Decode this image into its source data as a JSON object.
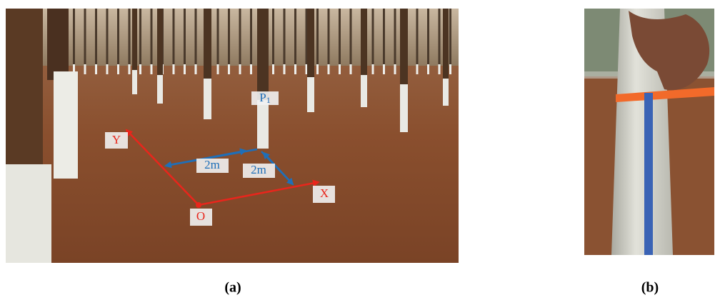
{
  "figure": {
    "panel_a": {
      "labels": {
        "y_axis": "Y",
        "x_axis": "X",
        "origin": "O",
        "point": {
          "main": "P",
          "sub": "1"
        },
        "distance_1": "2m",
        "distance_2": "2m"
      },
      "caption": "(a)"
    },
    "panel_b": {
      "caption": "(b)"
    }
  }
}
